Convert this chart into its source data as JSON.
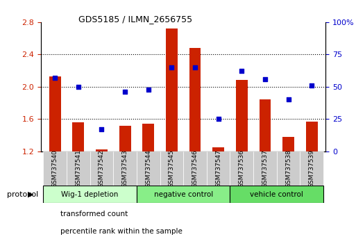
{
  "title": "GDS5185 / ILMN_2656755",
  "samples": [
    "GSM737540",
    "GSM737541",
    "GSM737542",
    "GSM737543",
    "GSM737544",
    "GSM737545",
    "GSM737546",
    "GSM737547",
    "GSM737536",
    "GSM737537",
    "GSM737538",
    "GSM737539"
  ],
  "red_bars": [
    2.13,
    1.56,
    1.22,
    1.52,
    1.54,
    2.72,
    2.48,
    1.25,
    2.08,
    1.84,
    1.38,
    1.57
  ],
  "blue_dots_pct": [
    57,
    50,
    17,
    46,
    48,
    65,
    65,
    25,
    62,
    56,
    40,
    51
  ],
  "ylim_left": [
    1.2,
    2.8
  ],
  "ylim_right": [
    0,
    100
  ],
  "yticks_left": [
    1.2,
    1.6,
    2.0,
    2.4,
    2.8
  ],
  "yticks_right": [
    0,
    25,
    50,
    75,
    100
  ],
  "groups": [
    {
      "label": "Wig-1 depletion",
      "color": "#ccffcc",
      "start": 0,
      "end": 4
    },
    {
      "label": "negative control",
      "color": "#88ee88",
      "start": 4,
      "end": 8
    },
    {
      "label": "vehicle control",
      "color": "#66dd66",
      "start": 8,
      "end": 12
    }
  ],
  "bar_color": "#cc2200",
  "dot_color": "#0000cc",
  "bg_color": "#ffffff",
  "plot_bg": "#ffffff",
  "tick_label_color_left": "#cc2200",
  "tick_label_color_right": "#0000cc",
  "bar_width": 0.5,
  "protocol_label": "protocol",
  "legend_red": "transformed count",
  "legend_blue": "percentile rank within the sample",
  "sample_cell_color": "#cccccc"
}
